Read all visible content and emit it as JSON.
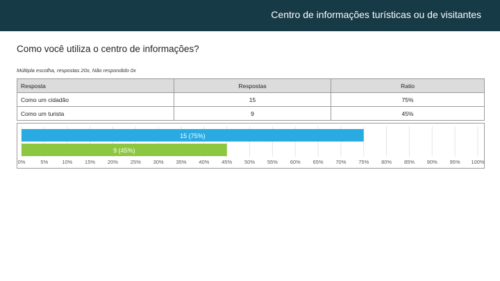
{
  "header": {
    "title": "Centro de informações turísticas ou de visitantes"
  },
  "question": {
    "title": "Como você utiliza o centro de informações?",
    "meta": "Múltipla escolha, respostas 20x, Não respondido 0x"
  },
  "table": {
    "headers": [
      "Resposta",
      "Respostas",
      "Ratio"
    ],
    "rows": [
      [
        "Como um cidadão",
        "15",
        "75%"
      ],
      [
        "Como um turista",
        "9",
        "45%"
      ]
    ]
  },
  "chart_data": {
    "type": "bar",
    "orientation": "horizontal",
    "categories": [
      "Como um cidadão",
      "Como um turista"
    ],
    "values": [
      75,
      45
    ],
    "counts": [
      15,
      9
    ],
    "data_labels": [
      "15 (75%)",
      "9 (45%)"
    ],
    "colors": [
      "#29abe2",
      "#8dc63f"
    ],
    "xlim": [
      0,
      100
    ],
    "x_ticks": [
      "0%",
      "5%",
      "10%",
      "15%",
      "20%",
      "25%",
      "30%",
      "35%",
      "40%",
      "45%",
      "50%",
      "55%",
      "60%",
      "65%",
      "70%",
      "75%",
      "80%",
      "85%",
      "90%",
      "95%",
      "100%"
    ],
    "grid": true
  }
}
